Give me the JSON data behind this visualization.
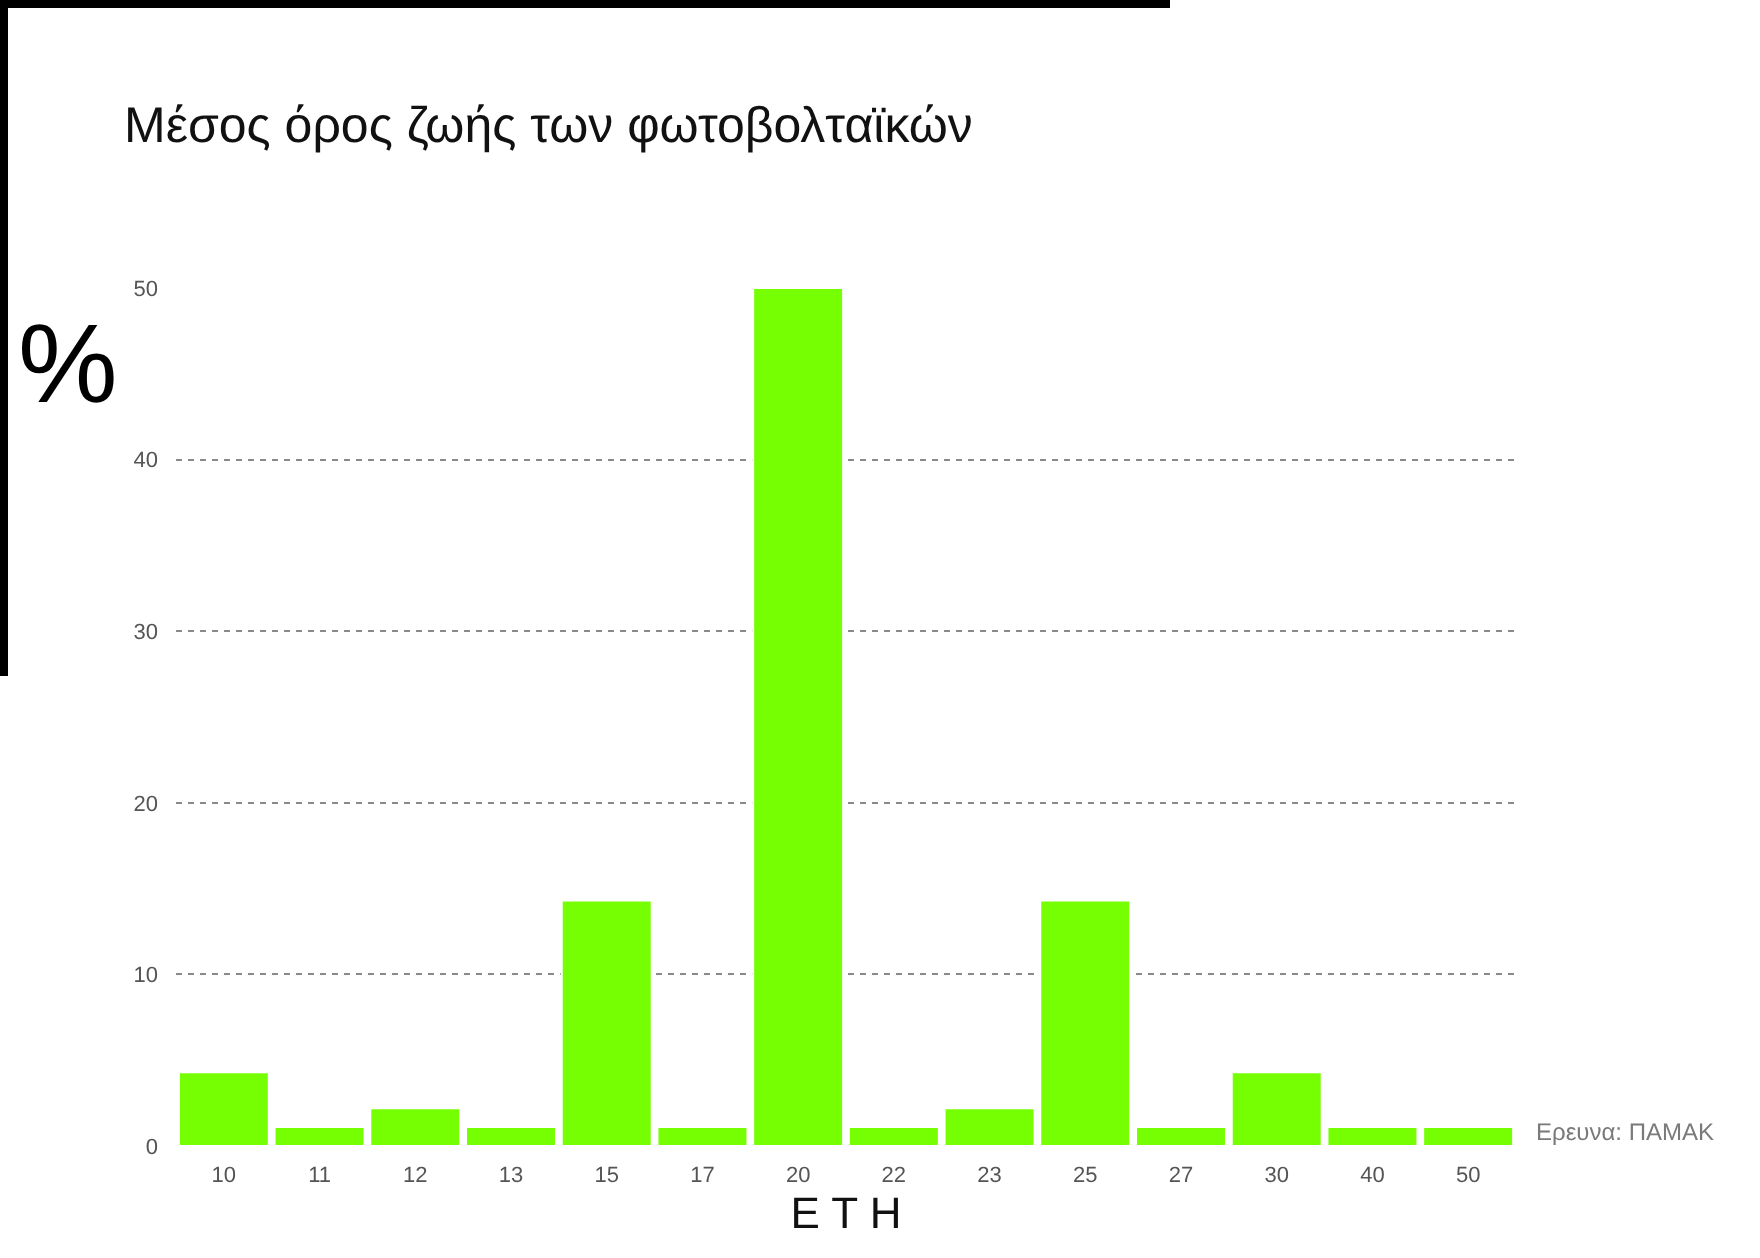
{
  "chart_data": {
    "type": "bar",
    "title": "Μέσος όρος ζωής των φωτοβολταϊκών",
    "ylabel": "%",
    "xlabel": "Ε Τ Η",
    "categories": [
      "10",
      "11",
      "12",
      "13",
      "15",
      "17",
      "20",
      "22",
      "23",
      "25",
      "27",
      "30",
      "40",
      "50"
    ],
    "values": [
      4.3,
      1.1,
      2.2,
      1.1,
      14.3,
      1.1,
      50,
      1.1,
      2.2,
      14.3,
      1.1,
      4.3,
      1.1,
      1.1
    ],
    "color": "#76ff03",
    "ylim": [
      0,
      50
    ],
    "yticks": [
      0,
      10,
      20,
      30,
      40,
      50
    ],
    "grid": "y",
    "annotations": [
      "Ερευνα: ΠΑΜΑΚ"
    ]
  }
}
